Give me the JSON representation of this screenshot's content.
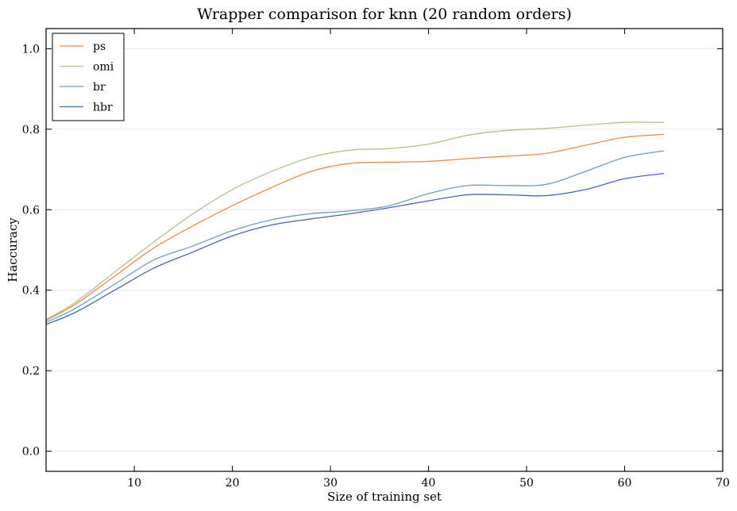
{
  "chart_data": {
    "type": "line",
    "title": "Wrapper comparison for knn (20 random orders)",
    "xlabel": "Size of training set",
    "ylabel": "Haccuracy",
    "xlim": [
      1,
      70
    ],
    "ylim": [
      -0.05,
      1.05
    ],
    "xticks": [
      10,
      20,
      30,
      40,
      50,
      60,
      70
    ],
    "yticks": [
      0.0,
      0.2,
      0.4,
      0.6,
      0.8,
      1.0
    ],
    "xtick_labels": [
      "10",
      "20",
      "30",
      "40",
      "50",
      "60",
      "70"
    ],
    "ytick_labels": [
      "0.0",
      "0.2",
      "0.4",
      "0.6",
      "0.8",
      "1.0"
    ],
    "grid": "horizontal",
    "legend_position": "top-left",
    "x": [
      1,
      4,
      8,
      12,
      16,
      20,
      24,
      28,
      32,
      36,
      40,
      44,
      48,
      52,
      56,
      60,
      64
    ],
    "series": [
      {
        "name": "ps",
        "color": "#ee8a44",
        "values": [
          0.325,
          0.365,
          0.435,
          0.505,
          0.56,
          0.61,
          0.655,
          0.695,
          0.715,
          0.718,
          0.72,
          0.727,
          0.733,
          0.74,
          0.76,
          0.78,
          0.787
        ]
      },
      {
        "name": "omi",
        "color": "#afc48c",
        "values": [
          0.327,
          0.37,
          0.445,
          0.52,
          0.59,
          0.65,
          0.695,
          0.73,
          0.748,
          0.752,
          0.763,
          0.785,
          0.797,
          0.802,
          0.81,
          0.817,
          0.817
        ]
      },
      {
        "name": "br",
        "color": "#6a9ec4",
        "values": [
          0.32,
          0.355,
          0.415,
          0.475,
          0.51,
          0.548,
          0.575,
          0.59,
          0.597,
          0.61,
          0.64,
          0.66,
          0.66,
          0.663,
          0.695,
          0.73,
          0.746
        ]
      },
      {
        "name": "hbr",
        "color": "#4466b0",
        "values": [
          0.315,
          0.345,
          0.4,
          0.455,
          0.495,
          0.535,
          0.562,
          0.577,
          0.59,
          0.605,
          0.622,
          0.637,
          0.637,
          0.635,
          0.65,
          0.677,
          0.69
        ]
      }
    ]
  }
}
